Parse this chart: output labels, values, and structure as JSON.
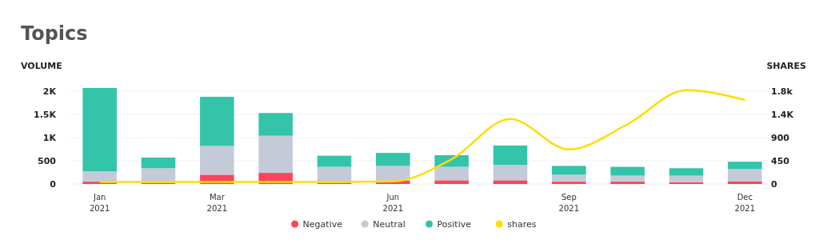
{
  "chart_data": {
    "type": "bar",
    "title": "Topics",
    "ylabel": "VOLUME",
    "y2label": "SHARES",
    "stacked": true,
    "grid": "y",
    "legend": "bottom",
    "categories": [
      "Jan\n2021",
      null,
      "Mar\n2021",
      null,
      null,
      "Jun\n2021",
      null,
      null,
      "Sep\n2021",
      null,
      null,
      "Dec\n2021"
    ],
    "ylim": [
      0,
      2100
    ],
    "yticks": [
      0,
      500,
      {
        "value": 1000,
        "label": "1K"
      },
      {
        "value": 1500,
        "label": "1.5K"
      },
      {
        "value": 2000,
        "label": "2K"
      }
    ],
    "y2lim": [
      0,
      1890
    ],
    "y2ticks": [
      0,
      450,
      900,
      {
        "value": 1350,
        "label": "1.4K"
      },
      {
        "value": 1800,
        "label": "1.8k"
      }
    ],
    "series": [
      {
        "name": "Negative",
        "color": "#ff4457",
        "values": [
          50,
          30,
          200,
          240,
          30,
          70,
          80,
          80,
          50,
          50,
          40,
          60
        ]
      },
      {
        "name": "Neutral",
        "color": "#c5cad8",
        "values": [
          220,
          310,
          620,
          800,
          340,
          320,
          290,
          330,
          150,
          130,
          140,
          260
        ]
      },
      {
        "name": "Positive",
        "color": "#33c4aa",
        "values": [
          1800,
          230,
          1060,
          490,
          240,
          280,
          250,
          420,
          190,
          190,
          160,
          160
        ]
      },
      {
        "name": "shares",
        "type": "line",
        "axis": "y2",
        "color": "#ffdd00",
        "values": [
          40,
          40,
          40,
          40,
          40,
          50,
          480,
          1260,
          670,
          1160,
          1820,
          1630
        ]
      }
    ]
  }
}
